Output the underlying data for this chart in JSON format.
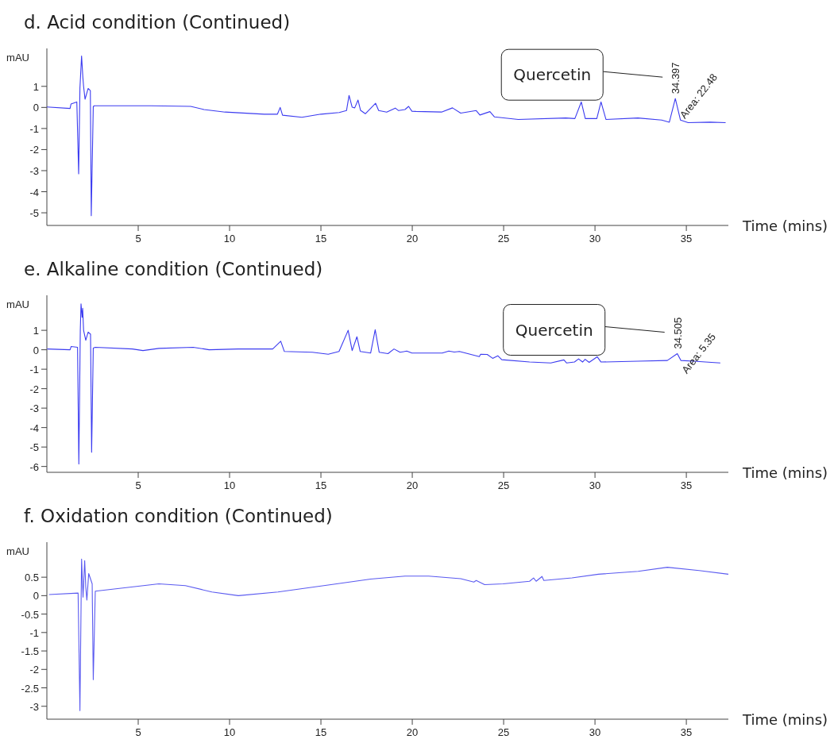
{
  "chart_data": [
    {
      "type": "line",
      "title": "d. Acid condition (Continued)",
      "xlabel": "Time (mins)",
      "ylabel": "mAU",
      "xlim": [
        0,
        37.3
      ],
      "xticks": [
        5,
        10,
        15,
        20,
        25,
        30,
        35
      ],
      "ylim": [
        -5.6,
        2.8
      ],
      "yticks": [
        -5,
        -4,
        -3,
        -2,
        -1,
        0,
        1
      ],
      "annotations": [
        "Quercetin",
        {
          "text": "34.397",
          "x": 34.397,
          "y": 0.42
        },
        "Area: 22.48"
      ],
      "series": [
        {
          "color": "#3b3bf0",
          "x": [
            0.0,
            1.27,
            1.32,
            1.64,
            1.74,
            1.81,
            1.9,
            1.97,
            2.01,
            2.09,
            2.26,
            2.38,
            2.43,
            2.54,
            2.6,
            5.7,
            7.87,
            8.6,
            9.75,
            11.9,
            12.62,
            12.77,
            12.9,
            13.96,
            15.0,
            16.0,
            16.4,
            16.54,
            16.71,
            16.85,
            17.03,
            17.17,
            17.43,
            17.99,
            18.16,
            18.6,
            19.07,
            19.25,
            19.6,
            19.8,
            19.98,
            20.2,
            21.6,
            22.2,
            22.65,
            23.5,
            23.7,
            24.25,
            24.5,
            25.8,
            28.4,
            28.9,
            29.25,
            29.47,
            30.1,
            30.33,
            30.6,
            32.35,
            33.65,
            34.07,
            34.397,
            34.68,
            35.1,
            36.3,
            37.15
          ],
          "values": [
            0.02,
            -0.05,
            0.16,
            0.26,
            -3.15,
            0.92,
            2.44,
            1.43,
            1.0,
            0.39,
            0.9,
            0.8,
            -5.14,
            0.04,
            0.08,
            0.08,
            0.05,
            -0.1,
            -0.22,
            -0.32,
            -0.32,
            0.0,
            -0.37,
            -0.47,
            -0.32,
            -0.24,
            -0.15,
            0.57,
            0.01,
            -0.02,
            0.35,
            -0.14,
            -0.3,
            0.2,
            -0.15,
            -0.22,
            -0.03,
            -0.15,
            -0.1,
            0.05,
            -0.18,
            -0.19,
            -0.22,
            -0.02,
            -0.27,
            -0.15,
            -0.36,
            -0.2,
            -0.45,
            -0.57,
            -0.5,
            -0.53,
            0.26,
            -0.53,
            -0.53,
            0.26,
            -0.57,
            -0.5,
            -0.6,
            -0.7,
            0.42,
            -0.6,
            -0.72,
            -0.7,
            -0.72
          ]
        }
      ]
    },
    {
      "type": "line",
      "title": "e. Alkaline condition (Continued)",
      "xlabel": "Time (mins)",
      "ylabel": "mAU",
      "xlim": [
        0,
        37.3
      ],
      "xticks": [
        5,
        10,
        15,
        20,
        25,
        30,
        35
      ],
      "ylim": [
        -6.3,
        2.8
      ],
      "yticks": [
        -6,
        -5,
        -4,
        -3,
        -2,
        -1,
        0,
        1
      ],
      "annotations": [
        "Quercetin",
        {
          "text": "34.505",
          "x": 34.505,
          "y": -0.2
        },
        "Area: 5.35"
      ],
      "series": [
        {
          "color": "#3b3bf0",
          "x": [
            0.02,
            1.27,
            1.33,
            1.68,
            1.75,
            1.83,
            1.87,
            1.93,
            1.96,
            2.01,
            2.13,
            2.26,
            2.39,
            2.45,
            2.54,
            2.65,
            4.68,
            5.26,
            6.13,
            8.01,
            8.88,
            10.48,
            12.36,
            12.8,
            13.0,
            14.53,
            15.4,
            15.99,
            16.49,
            16.71,
            16.97,
            17.15,
            17.72,
            17.97,
            18.19,
            18.67,
            19.0,
            19.33,
            19.7,
            19.98,
            20.48,
            21.64,
            22.0,
            22.3,
            22.58,
            23.67,
            23.74,
            24.1,
            24.4,
            24.68,
            24.9,
            26.42,
            27.58,
            28.3,
            28.45,
            28.88,
            29.1,
            29.32,
            29.46,
            29.68,
            30.12,
            30.33,
            32.36,
            33.96,
            34.505,
            34.7,
            35.4,
            36.86
          ],
          "values": [
            0.04,
            0.0,
            0.17,
            0.13,
            -5.87,
            1.0,
            2.36,
            1.67,
            2.13,
            1.0,
            0.49,
            0.91,
            0.8,
            -5.27,
            0.09,
            0.13,
            0.04,
            -0.04,
            0.07,
            0.13,
            0.0,
            0.04,
            0.04,
            0.44,
            -0.09,
            -0.13,
            -0.23,
            -0.09,
            1.0,
            -0.04,
            0.67,
            -0.09,
            -0.17,
            1.03,
            -0.13,
            -0.2,
            0.04,
            -0.13,
            -0.07,
            -0.17,
            -0.17,
            -0.17,
            -0.07,
            -0.12,
            -0.09,
            -0.35,
            -0.23,
            -0.24,
            -0.44,
            -0.31,
            -0.51,
            -0.63,
            -0.68,
            -0.52,
            -0.68,
            -0.63,
            -0.47,
            -0.63,
            -0.49,
            -0.65,
            -0.36,
            -0.63,
            -0.59,
            -0.55,
            -0.2,
            -0.55,
            -0.59,
            -0.68
          ]
        }
      ]
    },
    {
      "type": "line",
      "title": "f. Oxidation condition (Continued)",
      "xlabel": "Time (mins)",
      "ylabel": "mAU",
      "xlim": [
        0,
        37.3
      ],
      "xticks": [
        5,
        10,
        15,
        20,
        25,
        30,
        35
      ],
      "ylim": [
        -3.35,
        1.45
      ],
      "yticks": [
        -3,
        -2.5,
        -2,
        -1.5,
        -1,
        -0.5,
        0,
        0.5
      ],
      "series": [
        {
          "color": "#5a5af0",
          "x": [
            0.12,
            1.71,
            1.81,
            1.9,
            1.98,
            2.07,
            2.13,
            2.19,
            2.29,
            2.48,
            2.54,
            2.65,
            6.13,
            7.58,
            9.03,
            10.48,
            12.65,
            15.55,
            17.72,
            19.6,
            20.9,
            22.65,
            23.37,
            23.5,
            23.96,
            24.97,
            26.42,
            26.64,
            26.78,
            27.1,
            27.2,
            28.74,
            30.19,
            32.36,
            33.96,
            35.7,
            37.3
          ],
          "values": [
            0.03,
            0.07,
            -3.12,
            0.99,
            -0.04,
            0.95,
            0.23,
            -0.12,
            0.6,
            0.32,
            -2.28,
            0.12,
            0.32,
            0.27,
            0.1,
            0.0,
            0.1,
            0.3,
            0.45,
            0.53,
            0.53,
            0.46,
            0.37,
            0.41,
            0.3,
            0.32,
            0.39,
            0.48,
            0.39,
            0.52,
            0.41,
            0.48,
            0.58,
            0.66,
            0.77,
            0.68,
            0.58
          ]
        }
      ]
    }
  ]
}
